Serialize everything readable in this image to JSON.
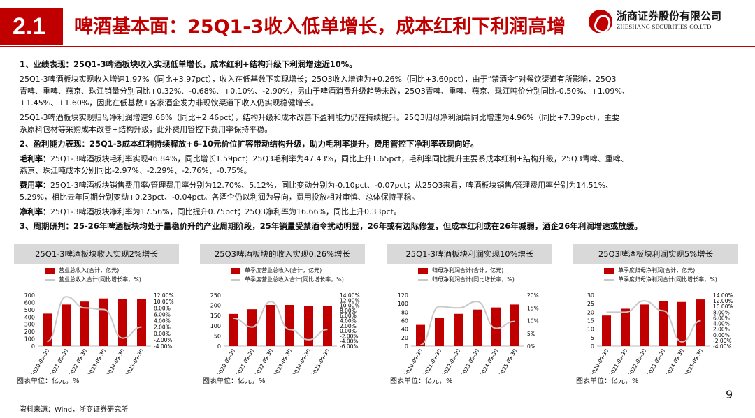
{
  "header": {
    "section": "2.1",
    "title": "啤酒基本面：25Q1-3收入低单增长，成本红利下利润高增",
    "logo_cn": "浙商证券股份有限公司",
    "logo_en": "ZHESHANG SECURITIES CO.LTD"
  },
  "content": {
    "p1": "1、业绩表现：25Q1-3啤酒板块收入实现低单增长，成本红利+结构升级下利润增速近10%。",
    "p2a": "25Q1-3啤酒板块实现收入增速1.97%（同比+3.97pct），收入在低基数下实现增长；25Q3收入增速为+0.26%（同比+3.60pct），由于“禁酒令”对餐饮渠道有所影响，25Q3",
    "p2b": "青啤、重啤、燕京、珠江销量分别同比+0.32%、-0.68%、+0.10%、-2.90%，另由于啤酒消费升级趋势未改，25Q3青啤、重啤、燕京、珠江吨价分别同比-0.50%、+1.09%、",
    "p2c": "+1.45%、+1.60%，因此在低基数+各家酒企发力非现饮渠道下收入仍实现稳健增长。",
    "p3a": "25Q1-3啤酒板块实现归母净利润增速9.66%（同比+2.46pct），结构升级和成本改善下盈利能力仍在持续提升。25Q3归母净利润端同比增速为4.96%（同比+7.39pct），主要",
    "p3b": "系原料包材等采购成本改善+结构升级，此外费用管控下费用率保持平稳。",
    "p4": "2、盈利能力表现：25Q1-3成本红利持续释放+6-10元价位扩容带动结构升级，助力毛利率提升，费用管控下净利率表现向好。",
    "p5a_label": "毛利率：",
    "p5a": "25Q1-3啤酒板块毛利率实现46.84%，同比增长1.59pct；25Q3毛利率为47.43%，同比上升1.65pct，毛利率同比提升主要系成本红利+结构升级，25Q3青啤、重啤、",
    "p5b": "燕京、珠江吨成本分别同比-2.97%、-2.29%、-2.76%、-0.75%。",
    "p6a_label": "费用率：",
    "p6a": "25Q1-3啤酒板块销售费用率/管理费用率分别为12.70%、5.12%，同比变动分别为-0.10pct、-0.07pct；从25Q3来看，啤酒板块销售/管理费用率分别为14.51%、",
    "p6b": "5.29%，相比去年同期分别变动+0.23pct、-0.04pct。各酒企仍以利润为导向，费用投放相对审慎、总体保持平稳。",
    "p7_label": "净利率：",
    "p7": "25Q1-3啤酒板块净利率为17.56%，同比提升0.75pct；25Q3净利率为16.66%，同比上升0.33pct。",
    "p8": "3、周期研判：25-26年啤酒板块均处于量稳价升的产业周期阶段，25年销量受禁酒令扰动明显，26年或有边际修复，但成本红利或在26年减弱，酒企26年利润增速或放缓。"
  },
  "footer": {
    "source": "资料来源：Wind，浙商证券研究所",
    "page": "9"
  },
  "chart_data": [
    {
      "type": "bar",
      "title": "25Q1-3啤酒板块收入实现2%增长",
      "legend_bar": "营业总收入(合计，亿元)",
      "legend_line": "营业总收入合计(同比增长率，%)",
      "unit": "图表单位：亿元，%",
      "categories": [
        "2020-09-30",
        "2021-09-30",
        "2022-09-30",
        "2023-09-30",
        "2024-09-30",
        "2025-09-30"
      ],
      "left_ticks": [
        "0",
        "100",
        "200",
        "300",
        "400",
        "500",
        "600",
        "700"
      ],
      "right_ticks": [
        "-4.00%",
        "-2.00%",
        "0.00%",
        "2.00%",
        "4.00%",
        "6.00%",
        "8.00%",
        "10.00%",
        "12.00%"
      ],
      "ylim": [
        0,
        700
      ],
      "y2lim": [
        -4,
        12
      ],
      "series": [
        {
          "values": [
            447,
            572,
            612,
            655,
            645,
            652
          ]
        },
        {
          "values": [
            -2.5,
            11.5,
            8.0,
            7.5,
            -1.5,
            2.0
          ]
        }
      ]
    },
    {
      "type": "bar",
      "title": "25Q3啤酒板块的收入实现0.26%增长",
      "legend_bar": "单季度营业总收入(合计，亿元)",
      "legend_line": "单季度营业总收入合计(同比增长率，%)",
      "unit": "图表单位：亿元，%",
      "categories": [
        "2020-09-30",
        "2021-09-30",
        "2022-09-30",
        "2023-09-30",
        "2024-09-30",
        "2025-09-30"
      ],
      "left_ticks": [
        "0",
        "50",
        "100",
        "150",
        "200",
        "250"
      ],
      "right_ticks": [
        "-6.00%",
        "-4.00%",
        "-2.00%",
        "0.00%",
        "2.00%",
        "4.00%",
        "6.00%",
        "8.00%",
        "10.00%",
        "12.00%",
        "14.00%"
      ],
      "ylim": [
        0,
        250
      ],
      "y2lim": [
        -6,
        14
      ],
      "series": [
        {
          "values": [
            158,
            181,
            202,
            202,
            198,
            198
          ]
        },
        {
          "values": [
            5.0,
            1.5,
            11.5,
            0.5,
            -3.5,
            0.5
          ]
        }
      ]
    },
    {
      "type": "bar",
      "title": "25Q1-3啤酒板块利润实现10%增长",
      "legend_bar": "归母净利润合计(合计，亿元)",
      "legend_line": "归母净利润合计(同比增长率，%)",
      "unit": "图表单位：亿元，%",
      "categories": [
        "2020-09-30",
        "2021-09-30",
        "2022-09-30",
        "2023-09-30",
        "2024-09-30",
        "2025-09-30"
      ],
      "left_ticks": [
        "0",
        "20",
        "40",
        "60",
        "80",
        "100",
        "120"
      ],
      "right_ticks": [
        "0%",
        "5%",
        "10%",
        "15%",
        "20%"
      ],
      "ylim": [
        0,
        120
      ],
      "y2lim": [
        0,
        20
      ],
      "series": [
        {
          "values": [
            50,
            66,
            76,
            86,
            91,
            98
          ]
        },
        {
          "values": [
            0.5,
            15.5,
            15.0,
            17.5,
            7.0,
            9.7
          ]
        }
      ]
    },
    {
      "type": "bar",
      "title": "25Q3啤酒板块利润实现5%增长",
      "legend_bar": "单季度归母净利润(合计，亿元)",
      "legend_line": "单季度归母净利润合计(同比增长率，%)",
      "unit": "图表单位：亿元，%",
      "categories": [
        "2020-09-30",
        "2021-09-30",
        "2022-09-30",
        "2023-09-30",
        "2024-09-30",
        "2025-09-30"
      ],
      "left_ticks": [
        "0",
        "5",
        "10",
        "15",
        "20",
        "25",
        "30"
      ],
      "right_ticks": [
        "-4.00%",
        "-2.00%",
        "0.00%",
        "2.00%",
        "4.00%",
        "6.00%",
        "8.00%",
        "10.00%",
        "12.00%",
        "14.00%"
      ],
      "ylim": [
        0,
        30
      ],
      "y2lim": [
        -4,
        14
      ],
      "series": [
        {
          "values": [
            18,
            22,
            24.5,
            26.5,
            26,
            27.5
          ]
        },
        {
          "values": [
            8.0,
            8.0,
            12.0,
            8.5,
            -2.5,
            5.0
          ]
        }
      ]
    }
  ]
}
